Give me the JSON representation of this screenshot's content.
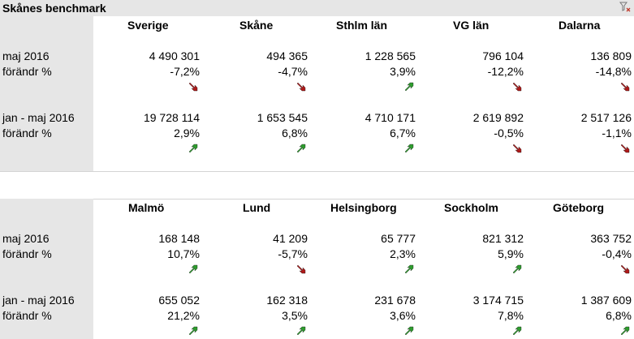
{
  "panel1": {
    "title": "Skånes benchmark",
    "columns": [
      "Sverige",
      "Skåne",
      "Sthlm län",
      "VG län",
      "Dalarna"
    ],
    "groups": [
      {
        "period": "maj 2016",
        "change_label": "förändr %",
        "values": [
          "4 490 301",
          "494 365",
          "1 228 565",
          "796 104",
          "136 809"
        ],
        "changes": [
          "-7,2%",
          "-4,7%",
          "3,9%",
          "-12,2%",
          "-14,8%"
        ],
        "trends": [
          "down",
          "down",
          "up",
          "down",
          "down"
        ]
      },
      {
        "period": "jan - maj 2016",
        "change_label": "förändr %",
        "values": [
          "19 728 114",
          "1 653 545",
          "4 710 171",
          "2 619 892",
          "2 517 126"
        ],
        "changes": [
          "2,9%",
          "6,8%",
          "6,7%",
          "-0,5%",
          "-1,1%"
        ],
        "trends": [
          "up",
          "up",
          "up",
          "down",
          "down"
        ]
      }
    ]
  },
  "panel2": {
    "columns": [
      "Malmö",
      "Lund",
      "Helsingborg",
      "Sockholm",
      "Göteborg"
    ],
    "groups": [
      {
        "period": "maj 2016",
        "change_label": "förändr %",
        "values": [
          "168 148",
          "41 209",
          "65 777",
          "821 312",
          "363 752"
        ],
        "changes": [
          "10,7%",
          "-5,7%",
          "2,3%",
          "5,9%",
          "-0,4%"
        ],
        "trends": [
          "up",
          "down",
          "up",
          "up",
          "down"
        ]
      },
      {
        "period": "jan - maj 2016",
        "change_label": "förändr %",
        "values": [
          "655 052",
          "162 318",
          "231 678",
          "3 174 715",
          "1 387 609"
        ],
        "changes": [
          "21,2%",
          "3,5%",
          "3,6%",
          "7,8%",
          "6,8%"
        ],
        "trends": [
          "up",
          "up",
          "up",
          "up",
          "up"
        ]
      }
    ]
  },
  "colors": {
    "up": "#2e9e2e",
    "down": "#b01a1a",
    "label_bg": "#e6e6e6"
  },
  "icons": {
    "filter": "clear-filter-icon",
    "up": "arrow-up-right-icon",
    "down": "arrow-down-right-icon"
  }
}
